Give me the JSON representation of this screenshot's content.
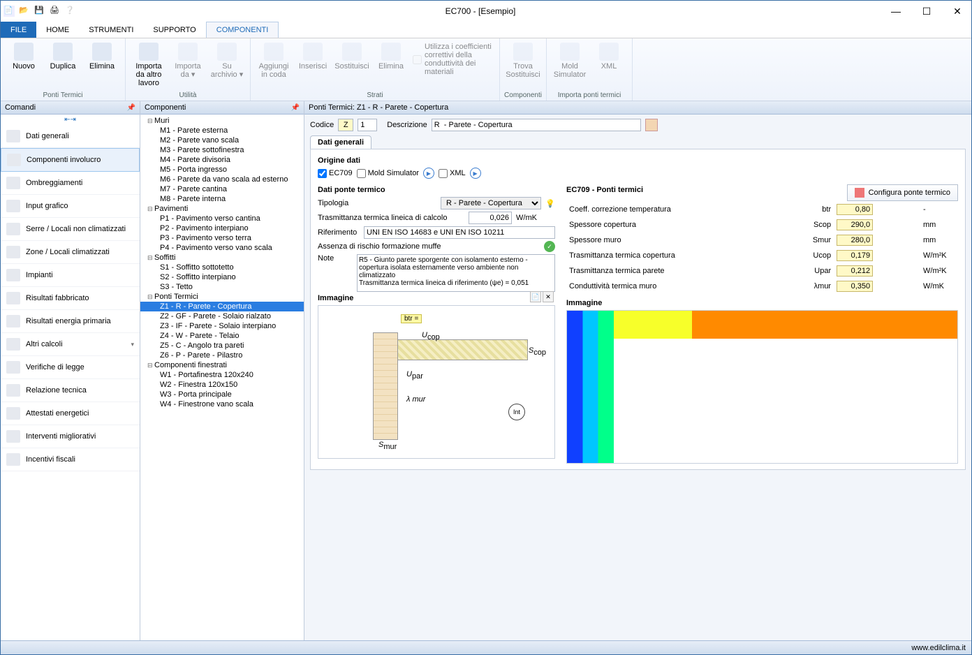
{
  "window": {
    "title": "EC700 - [Esempio]"
  },
  "menu": {
    "file": "FILE",
    "items": [
      "HOME",
      "STRUMENTI",
      "SUPPORTO",
      "COMPONENTI"
    ],
    "active": 3
  },
  "ribbon": {
    "groups": [
      {
        "label": "Ponti Termici",
        "buttons": [
          {
            "label": "Nuovo",
            "disabled": false
          },
          {
            "label": "Duplica",
            "disabled": false
          },
          {
            "label": "Elimina",
            "disabled": false
          }
        ]
      },
      {
        "label": "Utilità",
        "buttons": [
          {
            "label": "Importa da altro lavoro",
            "disabled": false
          },
          {
            "label": "Importa da ▾",
            "disabled": true
          },
          {
            "label": "Su archivio ▾",
            "disabled": true
          }
        ]
      },
      {
        "label": "Strati",
        "buttons": [
          {
            "label": "Aggiungi in coda",
            "disabled": true
          },
          {
            "label": "Inserisci",
            "disabled": true
          },
          {
            "label": "Sostituisci",
            "disabled": true
          },
          {
            "label": "Elimina",
            "disabled": true
          },
          {
            "label": "Utilizza i coefficienti correttivi della conduttività dei materiali",
            "disabled": true,
            "wide": true
          }
        ]
      },
      {
        "label": "Componenti",
        "buttons": [
          {
            "label": "Trova Sostituisci",
            "disabled": true
          }
        ]
      },
      {
        "label": "Importa ponti termici",
        "buttons": [
          {
            "label": "Mold Simulator",
            "disabled": true
          },
          {
            "label": "XML",
            "disabled": true
          }
        ]
      }
    ]
  },
  "sidebar": {
    "title": "Comandi",
    "items": [
      {
        "label": "Dati generali"
      },
      {
        "label": "Componenti involucro",
        "selected": true
      },
      {
        "label": "Ombreggiamenti"
      },
      {
        "label": "Input grafico"
      },
      {
        "label": "Serre / Locali non climatizzati"
      },
      {
        "label": "Zone / Locali climatizzati"
      },
      {
        "label": "Impianti"
      },
      {
        "label": "Risultati fabbricato"
      },
      {
        "label": "Risultati energia primaria"
      },
      {
        "label": "Altri calcoli",
        "expandable": true
      },
      {
        "label": "Verifiche di legge"
      },
      {
        "label": "Relazione tecnica"
      },
      {
        "label": "Attestati energetici"
      },
      {
        "label": "Interventi migliorativi"
      },
      {
        "label": "Incentivi fiscali"
      }
    ]
  },
  "comp_tree": {
    "title": "Componenti",
    "nodes": [
      {
        "l": 1,
        "label": "Muri",
        "tw": true
      },
      {
        "l": 2,
        "label": "M1 - Parete esterna"
      },
      {
        "l": 2,
        "label": "M2 - Parete vano scala"
      },
      {
        "l": 2,
        "label": "M3 - Parete sottofinestra"
      },
      {
        "l": 2,
        "label": "M4 - Parete divisoria"
      },
      {
        "l": 2,
        "label": "M5 - Porta ingresso"
      },
      {
        "l": 2,
        "label": "M6 - Parete da vano scala ad esterno"
      },
      {
        "l": 2,
        "label": "M7 - Parete cantina"
      },
      {
        "l": 2,
        "label": "M8 - Parete interna"
      },
      {
        "l": 1,
        "label": "Pavimenti",
        "tw": true
      },
      {
        "l": 2,
        "label": "P1 - Pavimento verso cantina"
      },
      {
        "l": 2,
        "label": "P2 - Pavimento interpiano"
      },
      {
        "l": 2,
        "label": "P3 - Pavimento verso terra"
      },
      {
        "l": 2,
        "label": "P4 - Pavimento verso vano scala"
      },
      {
        "l": 1,
        "label": "Soffitti",
        "tw": true
      },
      {
        "l": 2,
        "label": "S1 - Soffitto sottotetto"
      },
      {
        "l": 2,
        "label": "S2 - Soffitto interpiano"
      },
      {
        "l": 2,
        "label": "S3 - Tetto"
      },
      {
        "l": 1,
        "label": "Ponti Termici",
        "tw": true
      },
      {
        "l": 2,
        "label": "Z1 - R  - Parete - Copertura",
        "sel": true
      },
      {
        "l": 2,
        "label": "Z2 - GF - Parete - Solaio rialzato"
      },
      {
        "l": 2,
        "label": "Z3 - IF - Parete - Solaio interpiano"
      },
      {
        "l": 2,
        "label": "Z4 - W  - Parete - Telaio"
      },
      {
        "l": 2,
        "label": "Z5 - C  - Angolo tra pareti"
      },
      {
        "l": 2,
        "label": "Z6 - P  - Parete - Pilastro"
      },
      {
        "l": 1,
        "label": "Componenti finestrati",
        "tw": true
      },
      {
        "l": 2,
        "label": "W1 - Portafinestra 120x240"
      },
      {
        "l": 2,
        "label": "W2 - Finestra 120x150"
      },
      {
        "l": 2,
        "label": "W3 - Porta principale"
      },
      {
        "l": 2,
        "label": "W4 - Finestrone vano scala"
      }
    ]
  },
  "main": {
    "header": "Ponti Termici: Z1 - R  - Parete - Copertura",
    "code_label": "Codice",
    "code_z": "Z",
    "code_n": "1",
    "desc_label": "Descrizione",
    "desc": "R  - Parete - Copertura",
    "tab": "Dati generali",
    "origin": {
      "title": "Origine dati",
      "ec709": "EC709",
      "ec709_checked": true,
      "mold": "Mold Simulator",
      "mold_checked": false,
      "xml": "XML",
      "xml_checked": false
    },
    "bridge": {
      "title": "Dati ponte termico",
      "tipologia_label": "Tipologia",
      "tipologia_value": "R - Parete - Copertura",
      "trans_label": "Trasmittanza termica lineica di calcolo",
      "trans_value": "0,026",
      "trans_unit": "W/mK",
      "rif_label": "Riferimento",
      "rif_value": "UNI EN ISO 14683 e UNI EN ISO 10211",
      "muffe_label": "Assenza di rischio formazione muffe",
      "note_label": "Note",
      "note_value": "R5 - Giunto parete sporgente con isolamento esterno - copertura isolata esternamente verso ambiente non climatizzato\nTrasmittanza termica lineica di riferimento (ψe) = 0,051",
      "immagine_label": "Immagine"
    },
    "ec709": {
      "title": "EC709 - Ponti termici",
      "config_btn": "Configura ponte termico",
      "rows": [
        {
          "label": "Coeff. correzione temperatura",
          "sym": "btr",
          "val": "0,80",
          "unit": "-"
        },
        {
          "label": "Spessore copertura",
          "sym": "Scop",
          "val": "290,0",
          "unit": "mm"
        },
        {
          "label": "Spessore muro",
          "sym": "Smur",
          "val": "280,0",
          "unit": "mm"
        },
        {
          "label": "Trasmittanza termica copertura",
          "sym": "Ucop",
          "val": "0,179",
          "unit": "W/m²K"
        },
        {
          "label": "Trasmittanza termica parete",
          "sym": "Upar",
          "val": "0,212",
          "unit": "W/m²K"
        },
        {
          "label": "Conduttività termica muro",
          "sym": "λmur",
          "val": "0,350",
          "unit": "W/mK"
        }
      ],
      "immagine_label": "Immagine"
    },
    "schematic": {
      "btr": "btr =",
      "ucop": "U",
      "ucop_sub": "cop",
      "s": "S",
      "scop_sub": "cop",
      "upar": "U",
      "upar_sub": "par",
      "lambda": "λ mur",
      "smur": "S",
      "smur_sub": "mur",
      "int": "Int"
    }
  },
  "status": {
    "site": "www.edilclima.it"
  }
}
